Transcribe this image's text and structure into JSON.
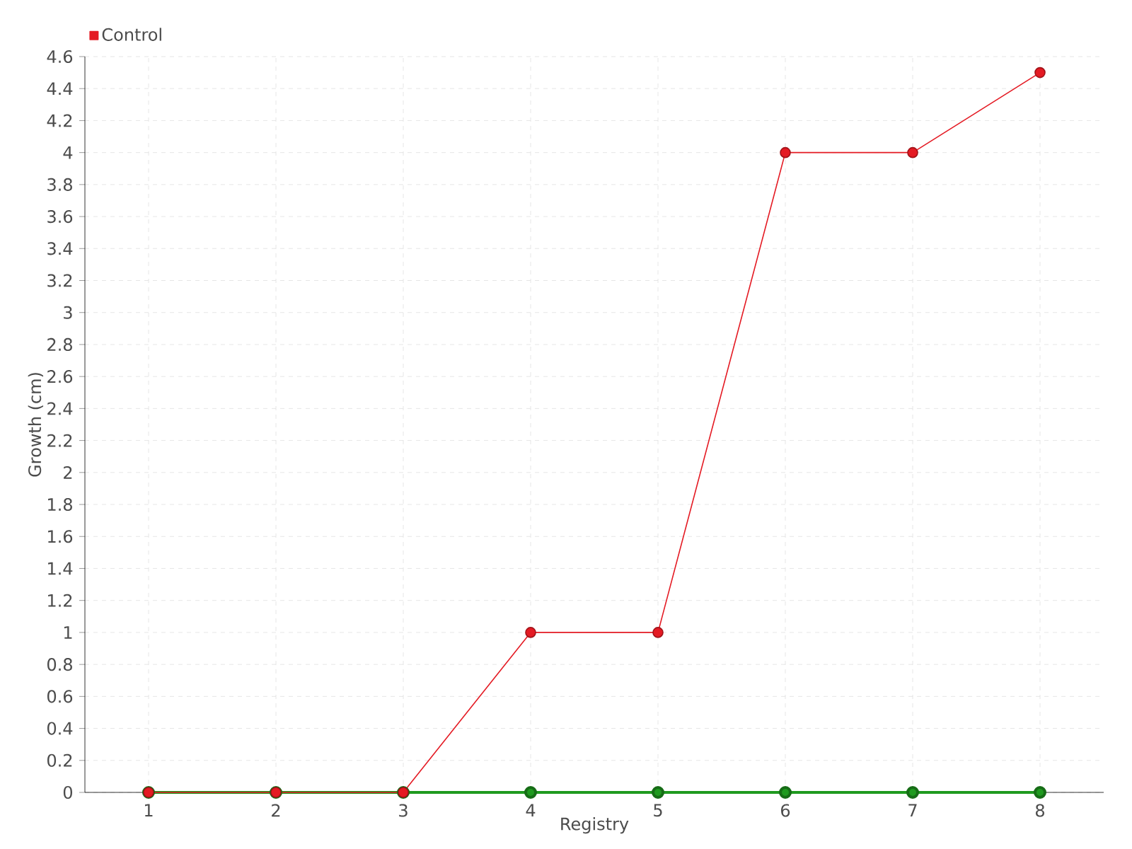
{
  "chart_data": {
    "type": "line",
    "xlabel": "Registry",
    "ylabel": "Growth (cm)",
    "x": [
      1,
      2,
      3,
      4,
      5,
      6,
      7,
      8
    ],
    "series": [
      {
        "color": "#1f9a1f",
        "values": [
          0,
          0,
          0,
          0,
          0,
          0,
          0,
          0
        ]
      },
      {
        "name": "Control",
        "color": "#e41a23",
        "values": [
          0,
          0,
          0,
          1,
          1,
          4,
          4,
          4.5
        ]
      }
    ],
    "xlim": [
      0.5,
      8.5
    ],
    "xticks": [
      1,
      2,
      3,
      4,
      5,
      6,
      7,
      8
    ],
    "ylim": [
      0,
      4.6
    ],
    "yticks": [
      0,
      0.2,
      0.4,
      0.6,
      0.8,
      1,
      1.2,
      1.4,
      1.6,
      1.8,
      2,
      2.2,
      2.4,
      2.6,
      2.8,
      3,
      3.2,
      3.4,
      3.6,
      3.8,
      4,
      4.2,
      4.4,
      4.6
    ],
    "grid": true,
    "legend": "top left",
    "marker": "circle",
    "line_style": "solid"
  }
}
